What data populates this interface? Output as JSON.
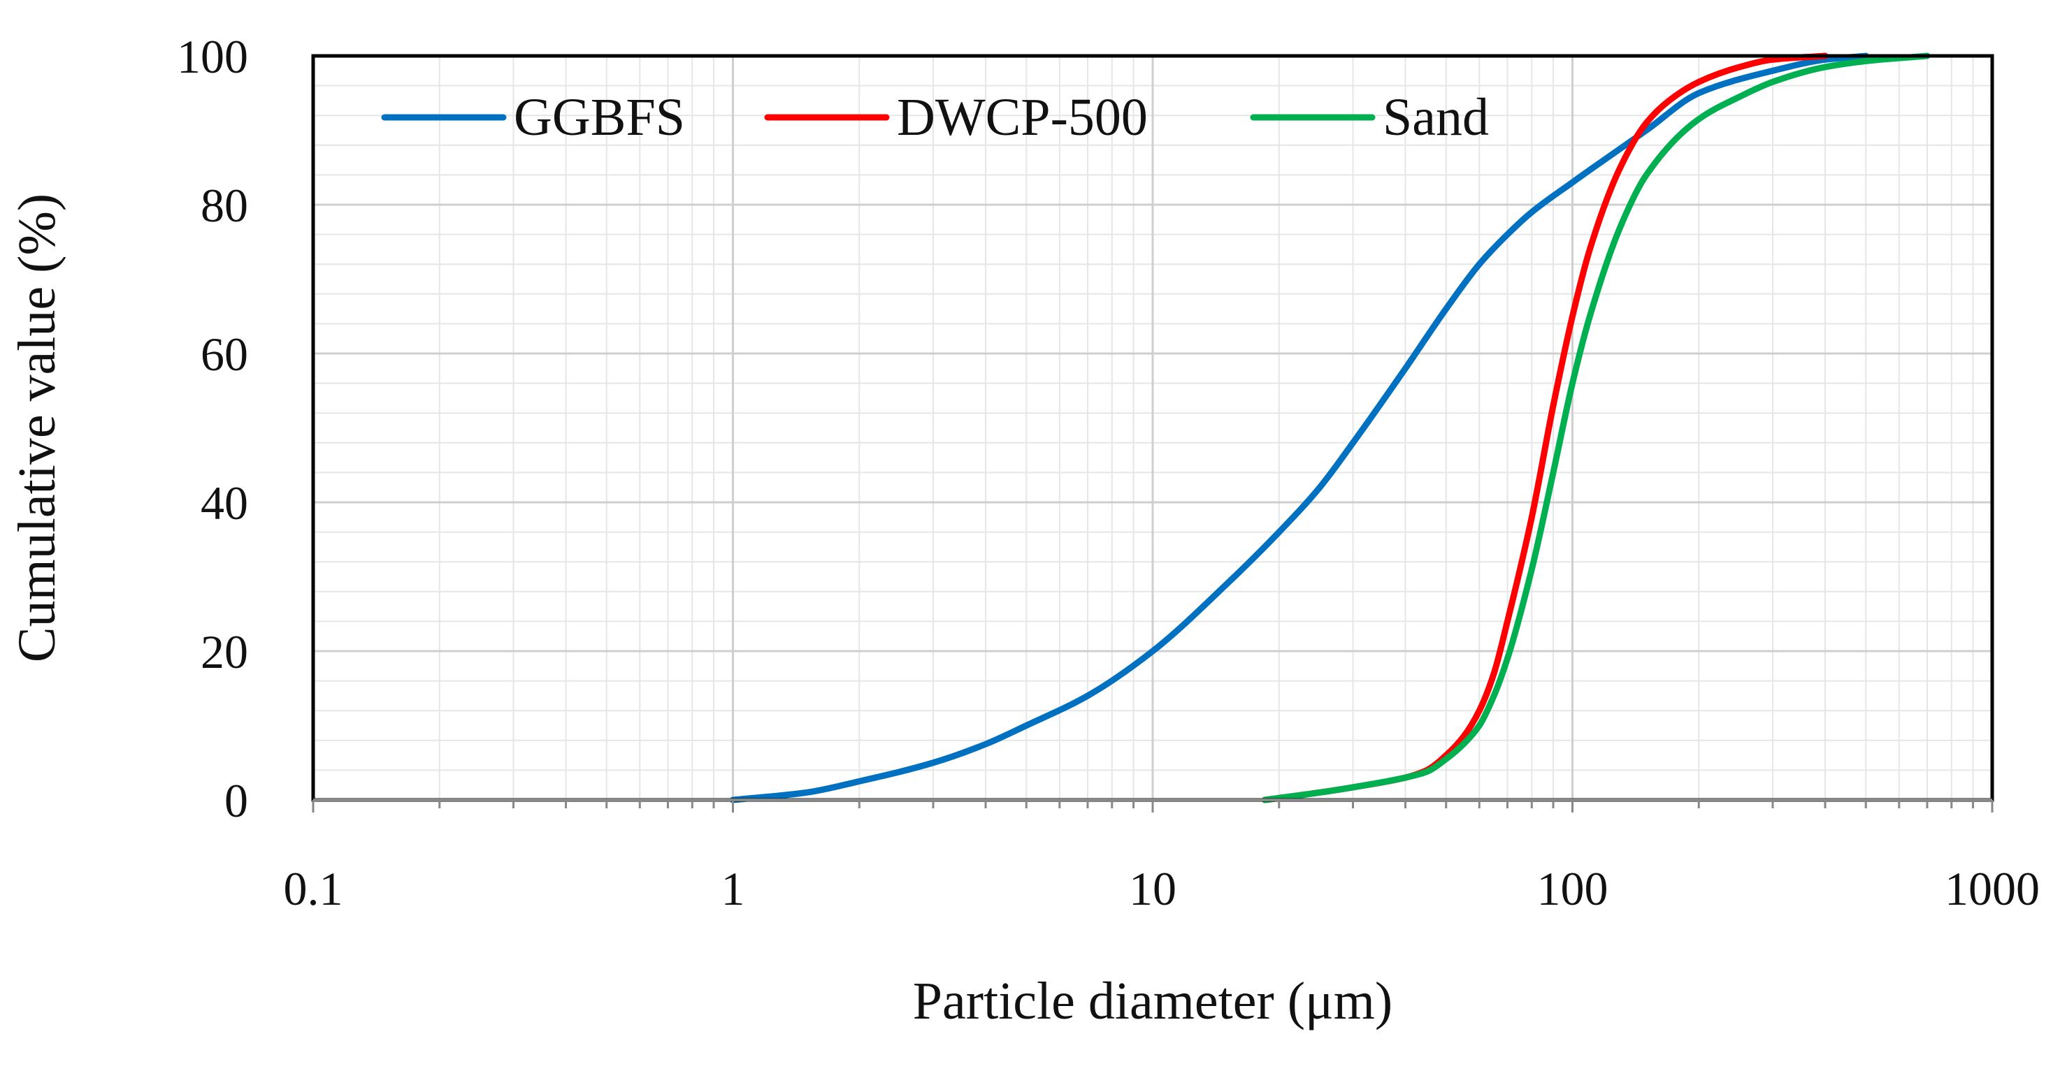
{
  "chart_data": {
    "type": "line",
    "title": "",
    "xlabel": "Particle diameter (μm)",
    "ylabel": "Cumulative value (%)",
    "xscale": "log",
    "xlim": [
      0.1,
      1000
    ],
    "ylim": [
      0,
      100
    ],
    "x_ticks": [
      "0.1",
      "1",
      "10",
      "100",
      "1000"
    ],
    "y_ticks": [
      "0",
      "20",
      "40",
      "60",
      "80",
      "100"
    ],
    "grid": true,
    "legend_position": "top-left",
    "series": [
      {
        "name": "GGBFS",
        "color": "#0070C0",
        "x": [
          1,
          1.5,
          2,
          3,
          4,
          5,
          7,
          10,
          15,
          20,
          25,
          30,
          40,
          50,
          60,
          70,
          80,
          100,
          150,
          200,
          300,
          400,
          500
        ],
        "y": [
          0,
          1,
          2.5,
          5,
          7.5,
          10,
          14,
          20,
          29,
          36,
          42,
          48,
          58,
          66,
          72,
          76,
          79,
          83,
          90,
          95,
          98,
          99.5,
          100
        ]
      },
      {
        "name": "DWCP-500",
        "color": "#FF0000",
        "x": [
          18.5,
          25,
          30,
          40,
          45,
          50,
          55,
          60,
          65,
          70,
          80,
          90,
          100,
          110,
          130,
          150,
          170,
          200,
          250,
          300,
          400
        ],
        "y": [
          0,
          1,
          1.7,
          3,
          4,
          6,
          8.5,
          12,
          17,
          24,
          38,
          53,
          65,
          74,
          85,
          91,
          94,
          96.5,
          98.5,
          99.5,
          100
        ]
      },
      {
        "name": "Sand",
        "color": "#00B050",
        "x": [
          18.5,
          25,
          30,
          40,
          45,
          50,
          55,
          60,
          65,
          70,
          80,
          90,
          100,
          110,
          130,
          150,
          200,
          250,
          300,
          400,
          500,
          700
        ],
        "y": [
          0,
          1,
          1.7,
          3,
          3.8,
          5.5,
          7.5,
          10,
          14,
          19,
          31,
          44,
          56,
          65,
          77,
          84,
          91.5,
          94.5,
          96.5,
          98.5,
          99.3,
          100
        ]
      }
    ]
  }
}
